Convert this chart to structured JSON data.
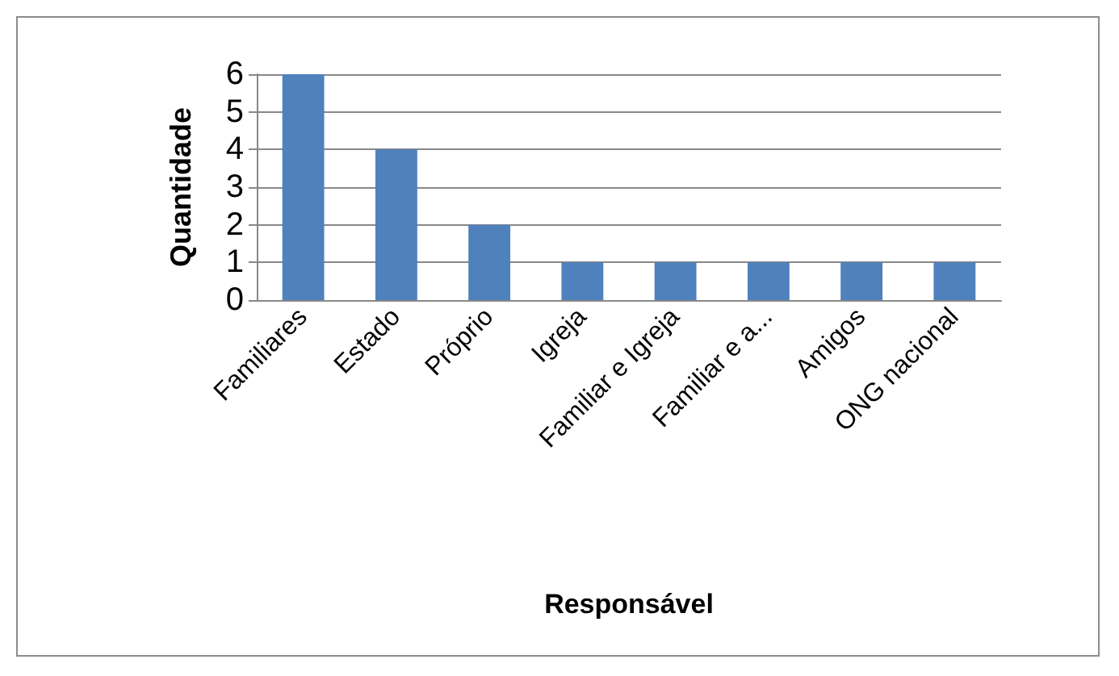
{
  "chart_data": {
    "type": "bar",
    "xlabel": "Responsável",
    "ylabel": "Quantidade",
    "categories": [
      "Familiares",
      "Estado",
      "Próprio",
      "Igreja",
      "Familiar e Igreja",
      "Familiar e a...",
      "Amigos",
      "ONG nacional"
    ],
    "values": [
      6,
      4,
      2,
      1,
      1,
      1,
      1,
      1
    ],
    "color": "#4f81bd",
    "ylim": [
      0,
      6
    ],
    "yticks": [
      0,
      1,
      2,
      3,
      4,
      5,
      6
    ],
    "grid": "y"
  }
}
